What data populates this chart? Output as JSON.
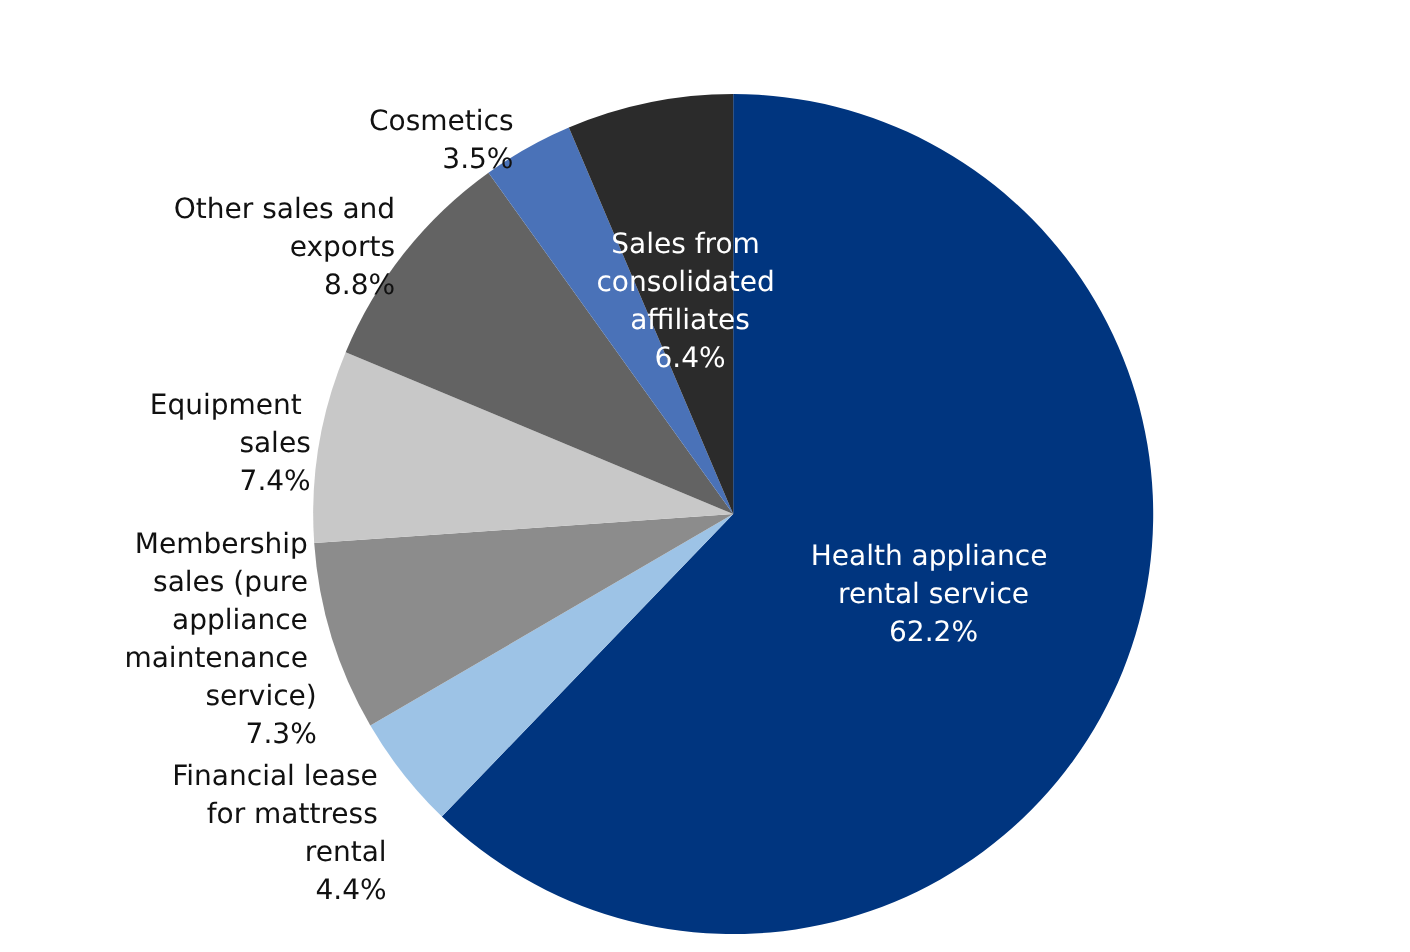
{
  "chart_data": {
    "type": "pie",
    "categories": [
      "Health appliance rental service",
      "Financial lease for mattress rental",
      "Membership sales (pure appliance maintenance service)",
      "Equipment sales",
      "Other sales and exports",
      "Cosmetics",
      "Sales from consolidated affiliates"
    ],
    "values": [
      62.2,
      4.4,
      7.3,
      7.4,
      8.8,
      3.5,
      6.4
    ],
    "value_labels": [
      "62.2%",
      "4.4%",
      "7.3%",
      "7.4%",
      "8.8%",
      "3.5%",
      "6.4%"
    ],
    "colors": [
      "#00357f",
      "#9dc3e6",
      "#8c8c8c",
      "#c8c8c8",
      "#636363",
      "#4a72b8",
      "#2b2b2b"
    ]
  }
}
